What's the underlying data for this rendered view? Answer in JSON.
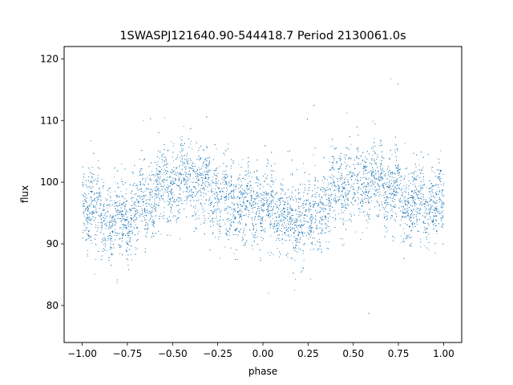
{
  "chart_data": {
    "type": "scatter",
    "title": "1SWASPJ121640.90-544418.7 Period 2130061.0s",
    "xlabel": "phase",
    "ylabel": "flux",
    "xlim": [
      -1.1,
      1.1
    ],
    "ylim": [
      74,
      122
    ],
    "xticks": [
      -1.0,
      -0.75,
      -0.5,
      -0.25,
      0.0,
      0.25,
      0.5,
      0.75,
      1.0
    ],
    "xtick_labels": [
      "−1.00",
      "−0.75",
      "−0.50",
      "−0.25",
      "0.00",
      "0.25",
      "0.50",
      "0.75",
      "1.00"
    ],
    "yticks": [
      80,
      90,
      100,
      110,
      120
    ],
    "ytick_labels": [
      "80",
      "90",
      "100",
      "110",
      "120"
    ],
    "grid": false,
    "point_color": "#1f77b4",
    "phase_curve": {
      "phase": [
        0.0,
        0.05,
        0.1,
        0.15,
        0.2,
        0.25,
        0.3,
        0.35,
        0.4,
        0.45,
        0.5,
        0.55,
        0.6,
        0.65,
        0.7,
        0.75,
        0.8,
        0.85,
        0.9,
        0.95,
        1.0
      ],
      "flux_mean": [
        97.0,
        96.0,
        94.5,
        93.5,
        94.0,
        94.5,
        95.5,
        97.0,
        98.5,
        99.5,
        100.0,
        100.5,
        100.5,
        100.0,
        99.0,
        98.0,
        97.0,
        96.0,
        96.0,
        96.5,
        97.0
      ],
      "flux_scatter_sd": 3.0,
      "range_observed": [
        76,
        120
      ]
    }
  }
}
